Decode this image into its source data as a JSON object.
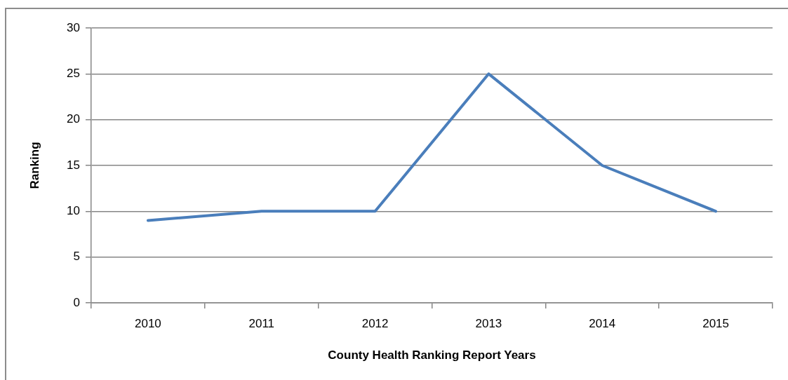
{
  "chart_data": {
    "type": "line",
    "xlabel": "County Health Ranking Report Years",
    "ylabel": "Ranking",
    "categories": [
      "2010",
      "2011",
      "2012",
      "2013",
      "2014",
      "2015"
    ],
    "series": [
      {
        "color": "#4a7ebb",
        "values": [
          9,
          10,
          10,
          25,
          15,
          10
        ]
      }
    ],
    "ylim": [
      0,
      30
    ],
    "yticks": [
      0,
      5,
      10,
      15,
      20,
      25,
      30
    ],
    "grid": "y",
    "marker": "none",
    "line_style": "solid"
  }
}
